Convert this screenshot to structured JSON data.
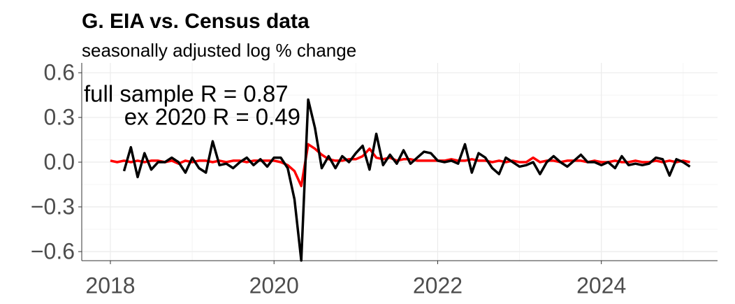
{
  "chart_data": {
    "type": "line",
    "title": "G. EIA vs. Census data",
    "subtitle": "seasonally adjusted log % change",
    "annotations": [
      "full sample R = 0.87",
      "ex 2020 R = 0.49"
    ],
    "x": [
      2018,
      2018.083,
      2018.167,
      2018.25,
      2018.333,
      2018.417,
      2018.5,
      2018.583,
      2018.667,
      2018.75,
      2018.833,
      2018.917,
      2019,
      2019.083,
      2019.167,
      2019.25,
      2019.333,
      2019.417,
      2019.5,
      2019.583,
      2019.667,
      2019.75,
      2019.833,
      2019.917,
      2020,
      2020.083,
      2020.167,
      2020.25,
      2020.333,
      2020.417,
      2020.5,
      2020.583,
      2020.667,
      2020.75,
      2020.833,
      2020.917,
      2021,
      2021.083,
      2021.167,
      2021.25,
      2021.333,
      2021.417,
      2021.5,
      2021.583,
      2021.667,
      2021.75,
      2021.833,
      2021.917,
      2022,
      2022.083,
      2022.167,
      2022.25,
      2022.333,
      2022.417,
      2022.5,
      2022.583,
      2022.667,
      2022.75,
      2022.833,
      2022.917,
      2023,
      2023.083,
      2023.167,
      2023.25,
      2023.333,
      2023.417,
      2023.5,
      2023.583,
      2023.667,
      2023.75,
      2023.833,
      2023.917,
      2024,
      2024.083,
      2024.167,
      2024.25,
      2024.333,
      2024.417,
      2024.5,
      2024.583,
      2024.667,
      2024.75,
      2024.833,
      2024.917,
      2025,
      2025.083
    ],
    "series": [
      {
        "color": "#ff0000",
        "values": [
          0.01,
          0.0,
          0.01,
          0.0,
          0.01,
          0.0,
          0.01,
          0.01,
          0.0,
          0.01,
          -0.01,
          0.01,
          0.0,
          0.01,
          0.01,
          0.0,
          0.01,
          0.0,
          0.01,
          0.01,
          0.0,
          0.01,
          0.01,
          0.01,
          0.01,
          0.0,
          -0.02,
          -0.06,
          -0.16,
          0.12,
          0.09,
          0.05,
          0.02,
          0.01,
          0.01,
          0.02,
          0.02,
          0.04,
          0.09,
          0.03,
          0.02,
          0.03,
          0.01,
          0.02,
          0.02,
          0.01,
          0.01,
          0.01,
          0.01,
          0.01,
          0.02,
          0.01,
          0.01,
          0.02,
          0.01,
          0.01,
          0.0,
          0.01,
          0.0,
          0.01,
          0.0,
          0.0,
          0.03,
          0.0,
          0.01,
          0.01,
          0.0,
          0.01,
          0.01,
          0.01,
          0.0,
          0.01,
          0.0,
          0.0,
          0.01,
          0.0,
          0.0,
          0.01,
          0.0,
          0.0,
          0.01,
          0.0,
          0.01,
          0.0,
          0.01,
          0.0
        ]
      },
      {
        "color": "#000000",
        "values": [
          null,
          null,
          -0.06,
          0.1,
          -0.1,
          0.06,
          -0.05,
          0.0,
          0.0,
          0.03,
          0.0,
          -0.07,
          0.03,
          -0.04,
          -0.07,
          0.14,
          -0.02,
          -0.01,
          -0.04,
          0.0,
          0.03,
          -0.02,
          0.02,
          -0.03,
          0.03,
          0.03,
          -0.04,
          -0.25,
          -0.66,
          0.42,
          0.23,
          -0.04,
          0.04,
          -0.04,
          0.04,
          0.0,
          0.06,
          0.11,
          -0.05,
          0.19,
          -0.02,
          0.05,
          -0.01,
          0.08,
          -0.01,
          0.03,
          0.07,
          0.06,
          0.01,
          0.0,
          0.01,
          -0.01,
          0.12,
          -0.07,
          0.06,
          0.03,
          -0.04,
          -0.08,
          0.03,
          0.0,
          -0.03,
          -0.02,
          0.0,
          -0.08,
          0.0,
          0.04,
          0.0,
          -0.03,
          0.01,
          0.05,
          0.0,
          0.0,
          -0.02,
          0.0,
          -0.04,
          0.04,
          -0.02,
          -0.01,
          -0.02,
          -0.01,
          0.03,
          0.02,
          -0.09,
          0.02,
          0.0,
          -0.03
        ]
      }
    ],
    "xlim": [
      2017.65,
      2025.42
    ],
    "xticks": [
      2018,
      2020,
      2022,
      2024
    ],
    "xminor": [
      2019,
      2021,
      2023,
      2025
    ],
    "ylim": [
      -0.661,
      0.666
    ],
    "yticks": [
      {
        "value": 0.6,
        "label": "0.6"
      },
      {
        "value": 0.3,
        "label": "0.3"
      },
      {
        "value": 0,
        "label": "0.0"
      },
      {
        "value": -0.3,
        "label": "−0.3"
      },
      {
        "value": -0.6,
        "label": "−0.6"
      }
    ],
    "yminor": [
      0.45,
      0.15,
      -0.15,
      -0.45
    ],
    "grid": true
  }
}
